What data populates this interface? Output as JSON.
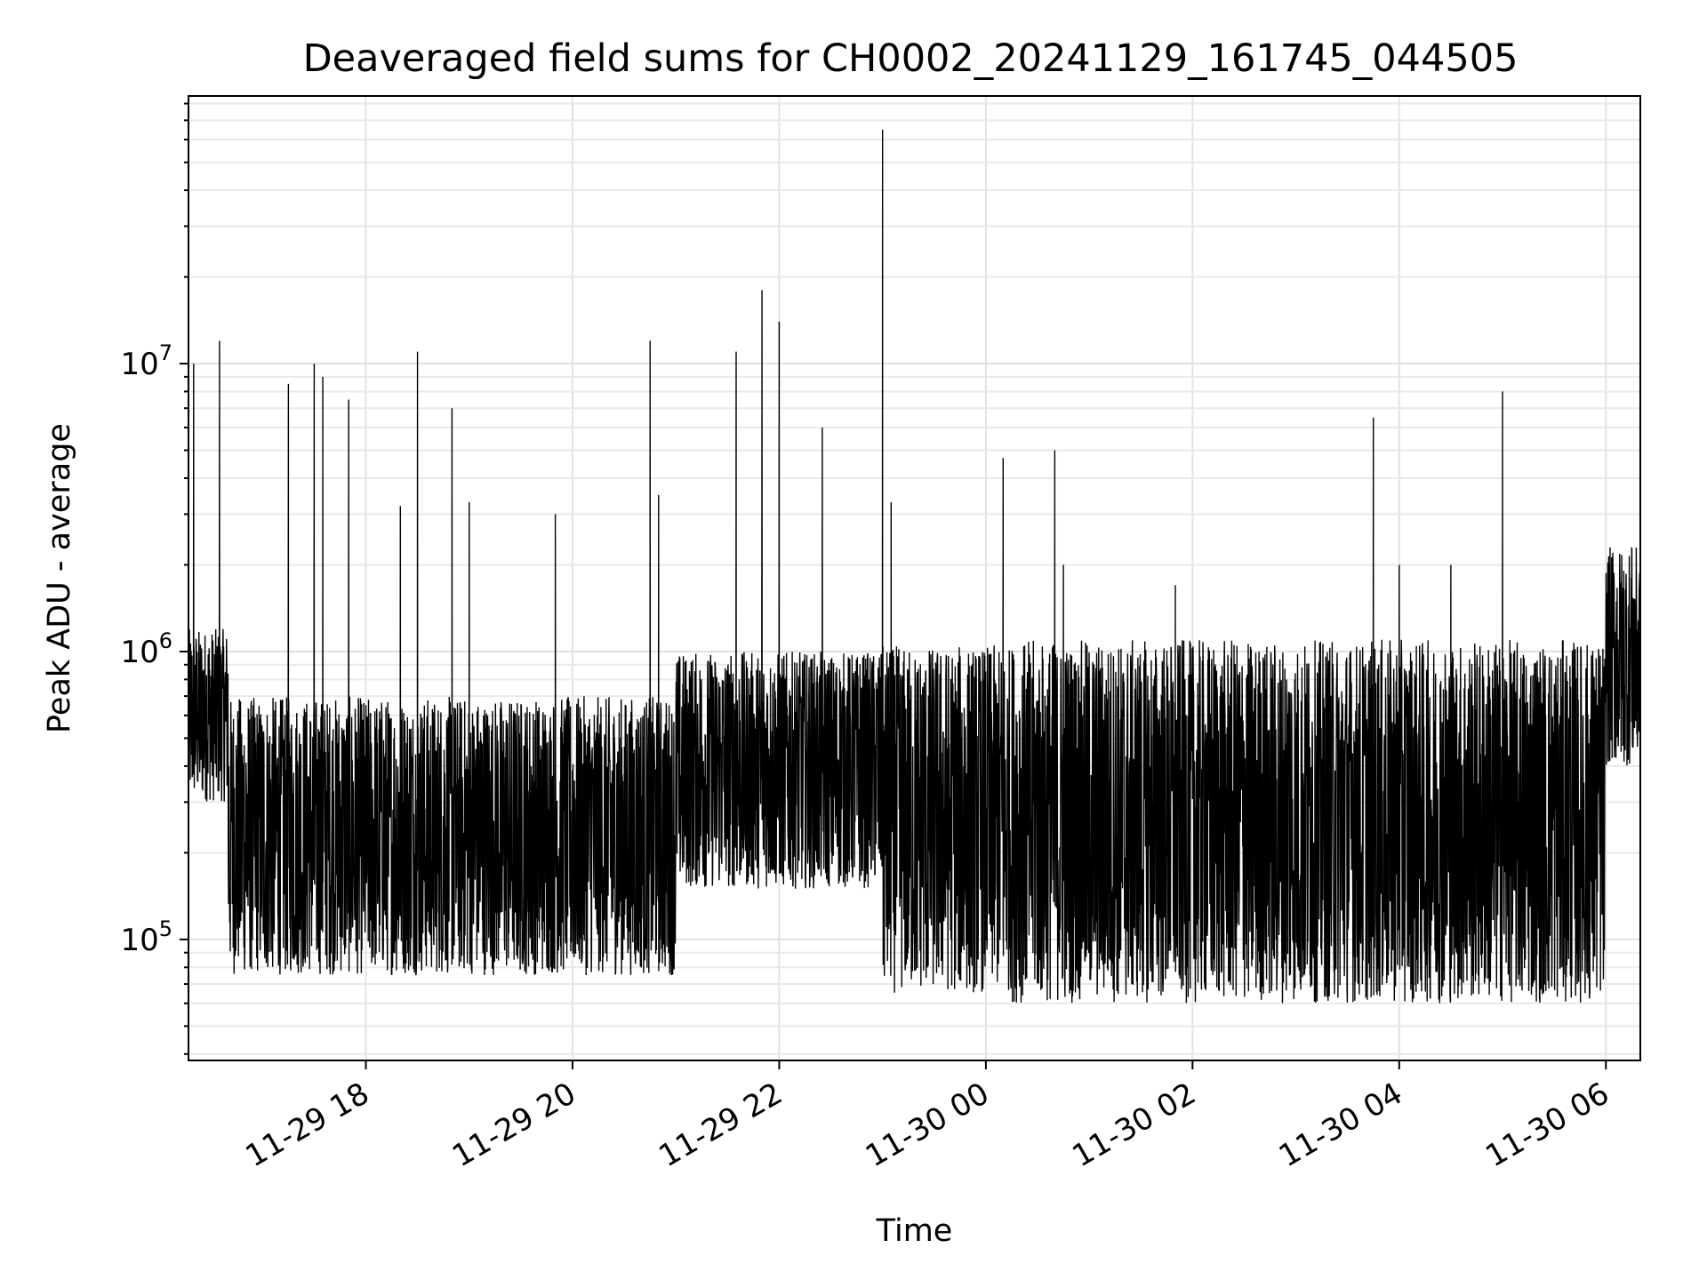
{
  "chart_data": {
    "type": "line",
    "title": "Deaveraged field sums for CH0002_20241129_161745_044505",
    "xlabel": "Time",
    "ylabel": "Peak ADU - average",
    "y_scale": "log",
    "grid": true,
    "grid_minor": true,
    "line_color": "#000000",
    "xlim": [
      "2024-11-29 16:17",
      "2024-11-30 06:20"
    ],
    "ylim": [
      38000,
      85000000
    ],
    "x_ticks": [
      {
        "value": "2024-11-29 18:00",
        "label": "11-29 18"
      },
      {
        "value": "2024-11-29 20:00",
        "label": "11-29 20"
      },
      {
        "value": "2024-11-29 22:00",
        "label": "11-29 22"
      },
      {
        "value": "2024-11-30 00:00",
        "label": "11-30 00"
      },
      {
        "value": "2024-11-30 02:00",
        "label": "11-30 02"
      },
      {
        "value": "2024-11-30 04:00",
        "label": "11-30 04"
      },
      {
        "value": "2024-11-30 06:00",
        "label": "11-30 06"
      }
    ],
    "y_ticks": [
      {
        "value": 100000,
        "base": "10",
        "exp": "5"
      },
      {
        "value": 1000000,
        "base": "10",
        "exp": "6"
      },
      {
        "value": 10000000,
        "base": "10",
        "exp": "7"
      }
    ],
    "series": [
      {
        "regimes": [
          {
            "start": "2024-11-29 16:17",
            "end": "2024-11-29 16:40",
            "low": 300000,
            "high": 1200000
          },
          {
            "start": "2024-11-29 16:40",
            "end": "2024-11-29 21:00",
            "low": 75000,
            "high": 700000
          },
          {
            "start": "2024-11-29 21:00",
            "end": "2024-11-29 23:00",
            "low": 150000,
            "high": 1000000
          },
          {
            "start": "2024-11-29 23:00",
            "end": "2024-11-30 00:15",
            "low": 65000,
            "high": 1050000
          },
          {
            "start": "2024-11-30 00:15",
            "end": "2024-11-30 06:00",
            "low": 60000,
            "high": 1100000
          },
          {
            "start": "2024-11-30 06:00",
            "end": "2024-11-30 06:20",
            "low": 400000,
            "high": 2300000
          }
        ],
        "peaks": [
          {
            "t": "2024-11-29 16:20",
            "v": 10000000
          },
          {
            "t": "2024-11-29 16:35",
            "v": 12000000
          },
          {
            "t": "2024-11-29 17:15",
            "v": 8500000
          },
          {
            "t": "2024-11-29 17:30",
            "v": 10000000
          },
          {
            "t": "2024-11-29 17:35",
            "v": 9000000
          },
          {
            "t": "2024-11-29 17:50",
            "v": 7500000
          },
          {
            "t": "2024-11-29 18:20",
            "v": 3200000
          },
          {
            "t": "2024-11-29 18:30",
            "v": 11000000
          },
          {
            "t": "2024-11-29 18:50",
            "v": 7000000
          },
          {
            "t": "2024-11-29 19:00",
            "v": 3300000
          },
          {
            "t": "2024-11-29 19:50",
            "v": 3000000
          },
          {
            "t": "2024-11-29 20:45",
            "v": 12000000
          },
          {
            "t": "2024-11-29 20:50",
            "v": 3500000
          },
          {
            "t": "2024-11-29 21:35",
            "v": 11000000
          },
          {
            "t": "2024-11-29 21:50",
            "v": 18000000
          },
          {
            "t": "2024-11-29 22:00",
            "v": 14000000
          },
          {
            "t": "2024-11-29 22:25",
            "v": 6000000
          },
          {
            "t": "2024-11-29 23:00",
            "v": 65000000
          },
          {
            "t": "2024-11-29 23:05",
            "v": 3300000
          },
          {
            "t": "2024-11-30 00:10",
            "v": 4700000
          },
          {
            "t": "2024-11-30 00:40",
            "v": 5000000
          },
          {
            "t": "2024-11-30 00:45",
            "v": 2000000
          },
          {
            "t": "2024-11-30 01:50",
            "v": 1700000
          },
          {
            "t": "2024-11-30 03:45",
            "v": 6500000
          },
          {
            "t": "2024-11-30 04:00",
            "v": 2000000
          },
          {
            "t": "2024-11-30 04:30",
            "v": 2000000
          },
          {
            "t": "2024-11-30 05:00",
            "v": 8000000
          },
          {
            "t": "2024-11-30 06:15",
            "v": 2300000
          }
        ]
      }
    ]
  }
}
